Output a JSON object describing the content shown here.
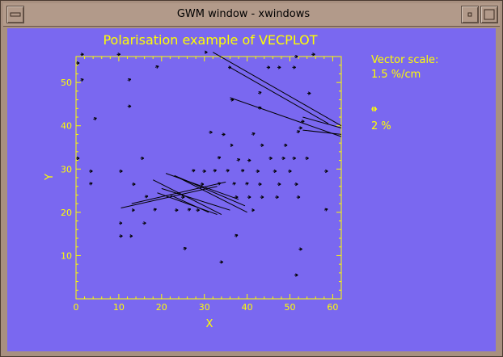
{
  "window": {
    "title": "GWM window - xwindows"
  },
  "plot": {
    "title": "Polarisation example of VECPLOT",
    "xlabel": "X",
    "ylabel": "Y",
    "vector_scale_label": "Vector scale:",
    "vector_scale_value": "1.5 %/cm",
    "key_label": "2 %",
    "key_percent": 2,
    "colors": {
      "background": "#7a68f0",
      "axes": "#ffff00",
      "vectors": "#000000"
    }
  },
  "chart_data": {
    "type": "scatter",
    "title": "Polarisation example of VECPLOT",
    "xlabel": "X",
    "ylabel": "Y",
    "xlim": [
      0,
      62
    ],
    "ylim": [
      0,
      56
    ],
    "xticks": [
      0,
      10,
      20,
      30,
      40,
      50,
      60
    ],
    "yticks": [
      10,
      20,
      30,
      40,
      50
    ],
    "arrow_percent_per_x_unit": 1.5,
    "vectors": [
      {
        "x": 2,
        "y": 56.5,
        "p": 0.9,
        "a": 0
      },
      {
        "x": 10.5,
        "y": 56.5,
        "p": 1.0,
        "a": 0
      },
      {
        "x": 31,
        "y": 57,
        "p": 0.8,
        "a": 0
      },
      {
        "x": 52,
        "y": 56,
        "p": 1.0,
        "a": 0
      },
      {
        "x": 56,
        "y": 56.5,
        "p": 1.0,
        "a": 0
      },
      {
        "x": 1,
        "y": 54.5,
        "p": 0.9,
        "a": 0
      },
      {
        "x": 19.5,
        "y": 53.5,
        "p": 1.0,
        "a": 20
      },
      {
        "x": 36.5,
        "y": 53.5,
        "p": 0.9,
        "a": 0
      },
      {
        "x": 45.5,
        "y": 53.5,
        "p": 1.0,
        "a": 0
      },
      {
        "x": 48,
        "y": 53.5,
        "p": 1.0,
        "a": 0
      },
      {
        "x": 51.5,
        "y": 53.5,
        "p": 1.0,
        "a": 0
      },
      {
        "x": 2,
        "y": 50.5,
        "p": 0.9,
        "a": 20
      },
      {
        "x": 13,
        "y": 50.5,
        "p": 1.0,
        "a": 20
      },
      {
        "x": 43.5,
        "y": 47.5,
        "p": 1.0,
        "a": 20
      },
      {
        "x": 55,
        "y": 47.5,
        "p": 1.0,
        "a": 0
      },
      {
        "x": 37,
        "y": 46,
        "p": 1.0,
        "a": 0
      },
      {
        "x": 13,
        "y": 44.5,
        "p": 1.0,
        "a": 0
      },
      {
        "x": 43.5,
        "y": 44,
        "p": 1.0,
        "a": 20
      },
      {
        "x": 5,
        "y": 41.5,
        "p": 1.0,
        "a": 20
      },
      {
        "x": 53.5,
        "y": 41,
        "p": 1.0,
        "a": 0
      },
      {
        "x": 53,
        "y": 39.5,
        "p": 1.0,
        "a": 0
      },
      {
        "x": 32,
        "y": 38.5,
        "p": 1.0,
        "a": 0
      },
      {
        "x": 35,
        "y": 38,
        "p": 1.0,
        "a": 0
      },
      {
        "x": 42,
        "y": 38,
        "p": 1.0,
        "a": 20
      },
      {
        "x": 52.5,
        "y": 38.5,
        "p": 1.0,
        "a": 20
      },
      {
        "x": 37,
        "y": 35.5,
        "p": 0.8,
        "a": 0
      },
      {
        "x": 44,
        "y": 35.5,
        "p": 1.0,
        "a": 0
      },
      {
        "x": 49.5,
        "y": 35.5,
        "p": 1.0,
        "a": 0
      },
      {
        "x": 1,
        "y": 32.5,
        "p": 0.9,
        "a": 0
      },
      {
        "x": 16,
        "y": 32.5,
        "p": 1.0,
        "a": 0
      },
      {
        "x": 34,
        "y": 32.5,
        "p": 1.0,
        "a": 20
      },
      {
        "x": 38.5,
        "y": 32,
        "p": 1.0,
        "a": 20
      },
      {
        "x": 41,
        "y": 32,
        "p": 1.0,
        "a": 0
      },
      {
        "x": 46,
        "y": 32.5,
        "p": 1.0,
        "a": 0
      },
      {
        "x": 49,
        "y": 32.5,
        "p": 1.0,
        "a": 0
      },
      {
        "x": 51.5,
        "y": 32.5,
        "p": 1.0,
        "a": 0
      },
      {
        "x": 54.5,
        "y": 32.5,
        "p": 1.0,
        "a": 0
      },
      {
        "x": 4,
        "y": 29.5,
        "p": 1.0,
        "a": 0
      },
      {
        "x": 11,
        "y": 29.5,
        "p": 1.0,
        "a": 0
      },
      {
        "x": 28,
        "y": 29.5,
        "p": 1.0,
        "a": 20
      },
      {
        "x": 30.5,
        "y": 29.5,
        "p": 1.0,
        "a": 0
      },
      {
        "x": 33,
        "y": 29.5,
        "p": 1.0,
        "a": 20
      },
      {
        "x": 36,
        "y": 29.5,
        "p": 1.0,
        "a": 20
      },
      {
        "x": 39.5,
        "y": 29.5,
        "p": 1.0,
        "a": 20
      },
      {
        "x": 43,
        "y": 29.5,
        "p": 1.0,
        "a": 0
      },
      {
        "x": 47,
        "y": 29.5,
        "p": 1.0,
        "a": 0
      },
      {
        "x": 50.5,
        "y": 29.5,
        "p": 1.0,
        "a": 0
      },
      {
        "x": 59,
        "y": 29.5,
        "p": 1.0,
        "a": 0
      },
      {
        "x": 4,
        "y": 26.5,
        "p": 1.0,
        "a": 20
      },
      {
        "x": 14,
        "y": 26.5,
        "p": 1.0,
        "a": 0
      },
      {
        "x": 30,
        "y": 26.5,
        "p": 1.0,
        "a": 0
      },
      {
        "x": 34,
        "y": 26.5,
        "p": 1.0,
        "a": 20
      },
      {
        "x": 37.5,
        "y": 26.5,
        "p": 1.0,
        "a": 20
      },
      {
        "x": 40.5,
        "y": 26.5,
        "p": 1.0,
        "a": 20
      },
      {
        "x": 43.5,
        "y": 26.5,
        "p": 1.0,
        "a": 0
      },
      {
        "x": 48,
        "y": 26.5,
        "p": 1.0,
        "a": 0
      },
      {
        "x": 52,
        "y": 26.5,
        "p": 1.0,
        "a": 0
      },
      {
        "x": 17,
        "y": 23.5,
        "p": 1.0,
        "a": 20
      },
      {
        "x": 25.5,
        "y": 23.5,
        "p": 1.0,
        "a": 0
      },
      {
        "x": 38,
        "y": 23.5,
        "p": 1.0,
        "a": 0
      },
      {
        "x": 41,
        "y": 23.5,
        "p": 1.0,
        "a": 0
      },
      {
        "x": 44,
        "y": 23.5,
        "p": 1.0,
        "a": 0
      },
      {
        "x": 47.5,
        "y": 23.5,
        "p": 1.0,
        "a": 0
      },
      {
        "x": 52.5,
        "y": 23.5,
        "p": 1.0,
        "a": 0
      },
      {
        "x": 14,
        "y": 20.5,
        "p": 0.8,
        "a": 0
      },
      {
        "x": 19,
        "y": 20.5,
        "p": 1.0,
        "a": 20
      },
      {
        "x": 24,
        "y": 20.5,
        "p": 1.0,
        "a": 0
      },
      {
        "x": 27,
        "y": 20.5,
        "p": 1.0,
        "a": 20
      },
      {
        "x": 29,
        "y": 20.5,
        "p": 1.0,
        "a": 0
      },
      {
        "x": 42,
        "y": 20.5,
        "p": 0.8,
        "a": 0
      },
      {
        "x": 59,
        "y": 20.5,
        "p": 1.0,
        "a": 20
      },
      {
        "x": 11,
        "y": 17.5,
        "p": 0.9,
        "a": 0
      },
      {
        "x": 16.5,
        "y": 17.5,
        "p": 1.0,
        "a": 0
      },
      {
        "x": 11,
        "y": 14.5,
        "p": 1.0,
        "a": 0
      },
      {
        "x": 13.5,
        "y": 14.5,
        "p": 0.8,
        "a": 0
      },
      {
        "x": 38,
        "y": 14.5,
        "p": 1.0,
        "a": 20
      },
      {
        "x": 26,
        "y": 11.5,
        "p": 1.0,
        "a": 20
      },
      {
        "x": 53,
        "y": 11.5,
        "p": 1.0,
        "a": 0
      },
      {
        "x": 34.5,
        "y": 8.5,
        "p": 1.0,
        "a": 0
      },
      {
        "x": 52,
        "y": 5.5,
        "p": 1.0,
        "a": 0
      }
    ],
    "lines": [
      {
        "x1": 32,
        "y1": 57,
        "x2": 62,
        "y2": 40
      },
      {
        "x1": 36,
        "y1": 53.5,
        "x2": 59,
        "y2": 40.5
      },
      {
        "x1": 36,
        "y1": 46.5,
        "x2": 62,
        "y2": 37.5
      },
      {
        "x1": 53,
        "y1": 42,
        "x2": 62,
        "y2": 39.5
      },
      {
        "x1": 53,
        "y1": 39,
        "x2": 62,
        "y2": 38
      },
      {
        "x1": 10.5,
        "y1": 21,
        "x2": 33,
        "y2": 26
      },
      {
        "x1": 13,
        "y1": 22,
        "x2": 35,
        "y2": 27
      },
      {
        "x1": 21,
        "y1": 29,
        "x2": 38,
        "y2": 23
      },
      {
        "x1": 23,
        "y1": 28.5,
        "x2": 39.5,
        "y2": 21.5
      },
      {
        "x1": 24,
        "y1": 28,
        "x2": 40,
        "y2": 20
      },
      {
        "x1": 18,
        "y1": 27.5,
        "x2": 34,
        "y2": 19.5
      },
      {
        "x1": 20,
        "y1": 25.5,
        "x2": 36,
        "y2": 20.5
      },
      {
        "x1": 19,
        "y1": 24.5,
        "x2": 33,
        "y2": 19.5
      },
      {
        "x1": 22,
        "y1": 24,
        "x2": 31,
        "y2": 20
      }
    ]
  }
}
